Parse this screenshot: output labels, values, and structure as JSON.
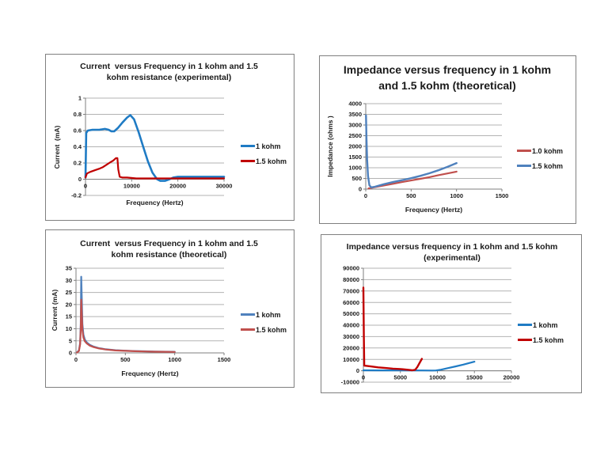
{
  "page": {
    "background": "#ffffff"
  },
  "chart_data": [
    {
      "id": "current-vs-frequency-experimental",
      "type": "line",
      "title": "Current  versus Frequency in 1 kohm and 1.5 kohm resistance (experimental)",
      "xlabel": "Frequency (Hertz)",
      "ylabel": "Current  (mA)",
      "xlim": [
        0,
        30000
      ],
      "ylim": [
        -0.2,
        1
      ],
      "xticks": [
        0,
        10000,
        20000,
        30000
      ],
      "yticks": [
        -0.2,
        0,
        0.2,
        0.4,
        0.6,
        0.8,
        1
      ],
      "grid": true,
      "legend_position": "right",
      "series": [
        {
          "name": "1 kohm",
          "color": "#1F7BC4",
          "points": [
            [
              0,
              0.02
            ],
            [
              150,
              0.57
            ],
            [
              500,
              0.6
            ],
            [
              1500,
              0.61
            ],
            [
              3000,
              0.61
            ],
            [
              4200,
              0.62
            ],
            [
              5000,
              0.61
            ],
            [
              5600,
              0.59
            ],
            [
              6200,
              0.59
            ],
            [
              7000,
              0.63
            ],
            [
              8000,
              0.7
            ],
            [
              9000,
              0.76
            ],
            [
              9700,
              0.79
            ],
            [
              10500,
              0.74
            ],
            [
              11500,
              0.58
            ],
            [
              12500,
              0.4
            ],
            [
              13500,
              0.22
            ],
            [
              14500,
              0.08
            ],
            [
              15500,
              0.0
            ],
            [
              16200,
              -0.02
            ],
            [
              17200,
              -0.02
            ],
            [
              18200,
              0.0
            ],
            [
              19000,
              0.02
            ],
            [
              20000,
              0.03
            ],
            [
              24000,
              0.03
            ],
            [
              30000,
              0.03
            ]
          ]
        },
        {
          "name": "1.5 kohm",
          "color": "#C00000",
          "points": [
            [
              0,
              0.02
            ],
            [
              300,
              0.07
            ],
            [
              1000,
              0.09
            ],
            [
              2000,
              0.11
            ],
            [
              3000,
              0.13
            ],
            [
              3800,
              0.15
            ],
            [
              4600,
              0.18
            ],
            [
              5400,
              0.21
            ],
            [
              6000,
              0.23
            ],
            [
              6600,
              0.26
            ],
            [
              6900,
              0.26
            ],
            [
              7100,
              0.12
            ],
            [
              7400,
              0.03
            ],
            [
              8000,
              0.02
            ],
            [
              9000,
              0.02
            ],
            [
              11000,
              0.01
            ],
            [
              15000,
              0.01
            ],
            [
              20000,
              0.01
            ],
            [
              25000,
              0.01
            ],
            [
              30000,
              0.01
            ]
          ]
        }
      ]
    },
    {
      "id": "impedance-vs-frequency-theoretical",
      "type": "line",
      "title": "Impedance versus frequency in 1 kohm and 1.5 kohm (theoretical)",
      "xlabel": "Frequency (Hertz)",
      "ylabel": "Impedance (ohms )",
      "xlim": [
        0,
        1500
      ],
      "ylim": [
        0,
        4000
      ],
      "xticks": [
        0,
        500,
        1000,
        1500
      ],
      "yticks": [
        0,
        500,
        1000,
        1500,
        2000,
        2500,
        3000,
        3500,
        4000
      ],
      "grid": true,
      "legend_position": "right",
      "series": [
        {
          "name": "1.0 kohm",
          "color": "#C0504D",
          "points": [
            [
              30,
              30
            ],
            [
              100,
              90
            ],
            [
              200,
              170
            ],
            [
              300,
              250
            ],
            [
              400,
              330
            ],
            [
              500,
              405
            ],
            [
              600,
              480
            ],
            [
              700,
              560
            ],
            [
              800,
              650
            ],
            [
              900,
              735
            ],
            [
              1000,
              820
            ]
          ]
        },
        {
          "name": "1.5 kohm",
          "color": "#4F81BD",
          "points": [
            [
              3,
              3450
            ],
            [
              8,
              2400
            ],
            [
              15,
              1400
            ],
            [
              25,
              600
            ],
            [
              40,
              180
            ],
            [
              60,
              80
            ],
            [
              100,
              110
            ],
            [
              200,
              230
            ],
            [
              300,
              330
            ],
            [
              400,
              420
            ],
            [
              500,
              510
            ],
            [
              600,
              620
            ],
            [
              700,
              740
            ],
            [
              800,
              880
            ],
            [
              900,
              1040
            ],
            [
              1000,
              1220
            ]
          ]
        }
      ]
    },
    {
      "id": "current-vs-frequency-theoretical",
      "type": "line",
      "title": "Current  versus Frequency in 1 kohm and 1.5 kohm resistance (theoretical)",
      "xlabel": "Frequency (Hertz)",
      "ylabel": "Current (mA)",
      "xlim": [
        0,
        1500
      ],
      "ylim": [
        0,
        35
      ],
      "xticks": [
        0,
        500,
        1000,
        1500
      ],
      "yticks": [
        0,
        5,
        10,
        15,
        20,
        25,
        30,
        35
      ],
      "grid": true,
      "legend_position": "right",
      "series": [
        {
          "name": "1 kohm",
          "color": "#4F81BD",
          "points": [
            [
              10,
              0.2
            ],
            [
              30,
              1
            ],
            [
              42,
              4
            ],
            [
              48,
              12
            ],
            [
              53,
              31.5
            ],
            [
              58,
              24
            ],
            [
              65,
              12
            ],
            [
              75,
              7.5
            ],
            [
              90,
              5.5
            ],
            [
              110,
              4.3
            ],
            [
              140,
              3.3
            ],
            [
              180,
              2.6
            ],
            [
              230,
              2.0
            ],
            [
              300,
              1.5
            ],
            [
              400,
              1.1
            ],
            [
              500,
              0.9
            ],
            [
              600,
              0.75
            ],
            [
              700,
              0.65
            ],
            [
              800,
              0.55
            ],
            [
              900,
              0.5
            ],
            [
              1000,
              0.45
            ]
          ]
        },
        {
          "name": "1.5 kohm",
          "color": "#C0504D",
          "points": [
            [
              10,
              0.15
            ],
            [
              30,
              0.8
            ],
            [
              42,
              3.5
            ],
            [
              48,
              10
            ],
            [
              53,
              22
            ],
            [
              58,
              17
            ],
            [
              65,
              9.5
            ],
            [
              75,
              6.3
            ],
            [
              90,
              4.8
            ],
            [
              110,
              3.9
            ],
            [
              140,
              3.0
            ],
            [
              180,
              2.4
            ],
            [
              230,
              1.85
            ],
            [
              300,
              1.4
            ],
            [
              400,
              1.0
            ],
            [
              500,
              0.85
            ],
            [
              600,
              0.7
            ],
            [
              700,
              0.6
            ],
            [
              800,
              0.5
            ],
            [
              900,
              0.45
            ],
            [
              1000,
              0.4
            ]
          ]
        }
      ]
    },
    {
      "id": "impedance-vs-frequency-experimental",
      "type": "line",
      "title": "Impedance versus frequency in 1 kohm and 1.5 kohm (experimental)",
      "xlabel": "",
      "ylabel": "",
      "xlim": [
        0,
        20000
      ],
      "ylim": [
        -10000,
        90000
      ],
      "xticks": [
        0,
        5000,
        10000,
        15000,
        20000
      ],
      "yticks": [
        -10000,
        0,
        10000,
        20000,
        30000,
        40000,
        50000,
        60000,
        70000,
        80000,
        90000
      ],
      "grid": true,
      "legend_position": "right",
      "series": [
        {
          "name": "1 kohm",
          "color": "#1F7BC4",
          "points": [
            [
              0,
              400
            ],
            [
              2000,
              380
            ],
            [
              4000,
              350
            ],
            [
              6000,
              320
            ],
            [
              8000,
              280
            ],
            [
              9300,
              200
            ],
            [
              9800,
              300
            ],
            [
              10500,
              1000
            ],
            [
              11500,
              2400
            ],
            [
              12500,
              3900
            ],
            [
              13500,
              5400
            ],
            [
              14300,
              6800
            ],
            [
              15000,
              8000
            ]
          ]
        },
        {
          "name": "1.5 kohm",
          "color": "#C00000",
          "points": [
            [
              0,
              73000
            ],
            [
              60,
              30000
            ],
            [
              120,
              4500
            ],
            [
              1000,
              3800
            ],
            [
              2000,
              3000
            ],
            [
              3000,
              2400
            ],
            [
              4000,
              1900
            ],
            [
              5000,
              1500
            ],
            [
              6000,
              900
            ],
            [
              6600,
              400
            ],
            [
              7000,
              900
            ],
            [
              7300,
              3500
            ],
            [
              7600,
              7000
            ],
            [
              7900,
              10500
            ]
          ]
        }
      ]
    }
  ]
}
